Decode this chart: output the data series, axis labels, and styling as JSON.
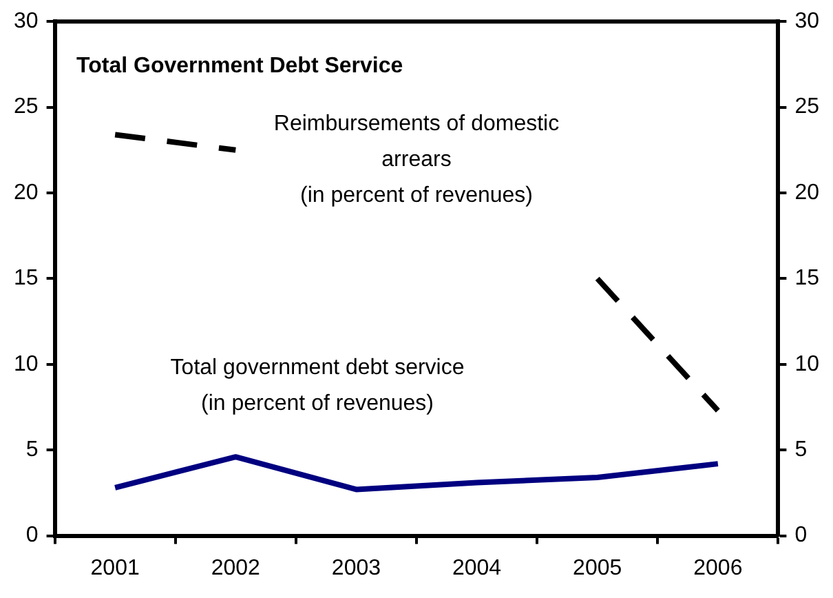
{
  "chart_data": {
    "type": "line",
    "title": "Total Government Debt Service",
    "categories": [
      "2001",
      "2002",
      "2003",
      "2004",
      "2005",
      "2006"
    ],
    "series": [
      {
        "name": "Reimbursements of domestic\narrears\n(in percent of revenues)",
        "color": "#000000",
        "line_style": "dashed",
        "values": [
          23.4,
          22.5,
          null,
          null,
          15.0,
          7.3
        ]
      },
      {
        "name": "Total government debt service\n(in percent of revenues)",
        "color": "#000080",
        "line_style": "solid",
        "values": [
          2.8,
          4.6,
          2.7,
          3.1,
          3.4,
          4.2
        ]
      }
    ],
    "ylim": [
      0,
      30
    ],
    "yticks": [
      0,
      5,
      10,
      15,
      20,
      25,
      30
    ],
    "y2lim": [
      0,
      30
    ],
    "y2ticks": [
      0,
      5,
      10,
      15,
      20,
      25,
      30
    ],
    "grid": false,
    "legend": false,
    "marker": "none"
  }
}
